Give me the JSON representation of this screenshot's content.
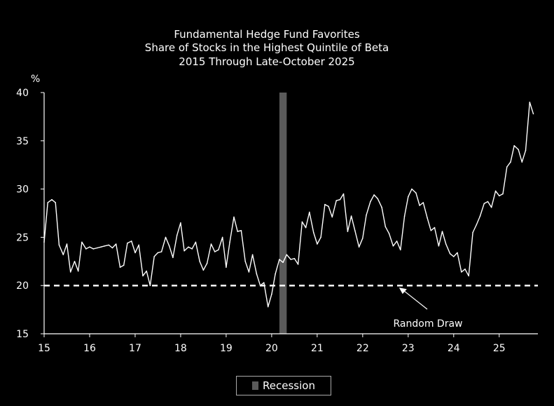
{
  "chart_data": {
    "type": "line",
    "title_lines": [
      "Fundamental Hedge Fund Favorites",
      "Share of Stocks in the Highest Quintile of Beta",
      "2015 Through Late-October 2025"
    ],
    "y_unit_label": "%",
    "ylim": [
      15,
      40
    ],
    "y_ticks": [
      15,
      20,
      25,
      30,
      35,
      40
    ],
    "xlim": [
      2015,
      2025.85
    ],
    "x_ticks": [
      {
        "value": 2015,
        "label": "15"
      },
      {
        "value": 2016,
        "label": "16"
      },
      {
        "value": 2017,
        "label": "17"
      },
      {
        "value": 2018,
        "label": "18"
      },
      {
        "value": 2019,
        "label": "19"
      },
      {
        "value": 2020,
        "label": "20"
      },
      {
        "value": 2021,
        "label": "21"
      },
      {
        "value": 2022,
        "label": "22"
      },
      {
        "value": 2023,
        "label": "23"
      },
      {
        "value": 2024,
        "label": "24"
      },
      {
        "value": 2025,
        "label": "25"
      }
    ],
    "random_draw": {
      "value": 20,
      "label": "Random Draw",
      "arrow_target_x": 2022.8
    },
    "recession": {
      "start": 2020.17,
      "end": 2020.33,
      "label": "Recession",
      "color": "#5a5a5a"
    },
    "line_color": "#ffffff",
    "grid": false,
    "legend_position": "bottom-center",
    "x": [
      2015.0,
      2015.08,
      2015.17,
      2015.25,
      2015.33,
      2015.42,
      2015.5,
      2015.58,
      2015.67,
      2015.75,
      2015.83,
      2015.92,
      2016.0,
      2016.08,
      2016.17,
      2016.25,
      2016.33,
      2016.42,
      2016.5,
      2016.58,
      2016.67,
      2016.75,
      2016.83,
      2016.92,
      2017.0,
      2017.08,
      2017.17,
      2017.25,
      2017.33,
      2017.42,
      2017.5,
      2017.58,
      2017.67,
      2017.75,
      2017.83,
      2017.92,
      2018.0,
      2018.08,
      2018.17,
      2018.25,
      2018.33,
      2018.42,
      2018.5,
      2018.58,
      2018.67,
      2018.75,
      2018.83,
      2018.92,
      2019.0,
      2019.08,
      2019.17,
      2019.25,
      2019.33,
      2019.42,
      2019.5,
      2019.58,
      2019.67,
      2019.75,
      2019.83,
      2019.92,
      2020.0,
      2020.08,
      2020.17,
      2020.25,
      2020.33,
      2020.42,
      2020.5,
      2020.58,
      2020.67,
      2020.75,
      2020.83,
      2020.92,
      2021.0,
      2021.08,
      2021.17,
      2021.25,
      2021.33,
      2021.42,
      2021.5,
      2021.58,
      2021.67,
      2021.75,
      2021.83,
      2021.92,
      2022.0,
      2022.08,
      2022.17,
      2022.25,
      2022.33,
      2022.42,
      2022.5,
      2022.58,
      2022.67,
      2022.75,
      2022.83,
      2022.92,
      2023.0,
      2023.08,
      2023.17,
      2023.25,
      2023.33,
      2023.42,
      2023.5,
      2023.58,
      2023.67,
      2023.75,
      2023.83,
      2023.92,
      2024.0,
      2024.08,
      2024.17,
      2024.25,
      2024.33,
      2024.42,
      2024.5,
      2024.58,
      2024.67,
      2024.75,
      2024.83,
      2024.92,
      2025.0,
      2025.08,
      2025.17,
      2025.25,
      2025.33,
      2025.42,
      2025.5,
      2025.58,
      2025.67,
      2025.75
    ],
    "y": [
      24.5,
      28.6,
      28.9,
      28.6,
      24.2,
      23.2,
      24.3,
      21.4,
      22.5,
      21.5,
      24.5,
      23.8,
      24.0,
      23.8,
      23.9,
      24.0,
      24.1,
      24.2,
      23.9,
      24.3,
      21.9,
      22.1,
      24.4,
      24.6,
      23.4,
      24.2,
      21.0,
      21.5,
      20.0,
      23.0,
      23.4,
      23.5,
      25.0,
      24.1,
      22.9,
      25.2,
      26.5,
      23.6,
      24.0,
      23.8,
      24.5,
      22.5,
      21.6,
      22.3,
      24.3,
      23.5,
      23.7,
      25.0,
      21.9,
      24.5,
      27.1,
      25.6,
      25.7,
      22.5,
      21.4,
      23.2,
      21.2,
      20.0,
      20.3,
      17.8,
      19.1,
      21.2,
      22.7,
      22.4,
      23.2,
      22.7,
      22.8,
      22.2,
      26.6,
      26.0,
      27.6,
      25.5,
      24.3,
      25.0,
      28.4,
      28.2,
      27.1,
      28.8,
      28.9,
      29.5,
      25.6,
      27.2,
      25.7,
      24.0,
      24.9,
      27.3,
      28.7,
      29.4,
      29.0,
      28.1,
      26.1,
      25.4,
      24.1,
      24.6,
      23.7,
      27.2,
      29.2,
      30.0,
      29.6,
      28.3,
      28.6,
      27.0,
      25.7,
      26.0,
      24.1,
      25.6,
      24.3,
      23.3,
      23.0,
      23.4,
      21.4,
      21.7,
      21.0,
      25.5,
      26.3,
      27.2,
      28.5,
      28.7,
      28.1,
      29.8,
      29.3,
      29.5,
      32.3,
      32.8,
      34.5,
      34.1,
      32.8,
      34.0,
      39.0,
      37.8
    ]
  },
  "legend": {
    "label": "Recession"
  }
}
